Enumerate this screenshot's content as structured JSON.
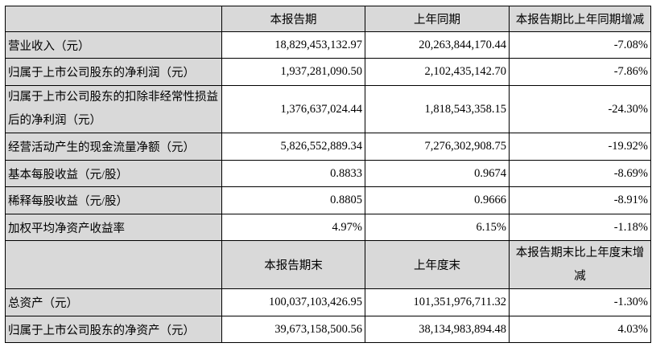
{
  "header1": [
    "",
    "本报告期",
    "上年同期",
    "本报告期比上年同期增减"
  ],
  "rows1": [
    {
      "label": "营业收入（元）",
      "current": "18,829,453,132.97",
      "prior": "20,263,844,170.44",
      "change": "-7.08%"
    },
    {
      "label": "归属于上市公司股东的净利润（元）",
      "current": "1,937,281,090.50",
      "prior": "2,102,435,142.70",
      "change": "-7.86%"
    },
    {
      "label": "归属于上市公司股东的扣除非经常性损益后的净利润（元）",
      "current": "1,376,637,024.44",
      "prior": "1,818,543,358.15",
      "change": "-24.30%"
    },
    {
      "label": "经营活动产生的现金流量净额（元）",
      "current": "5,826,552,889.34",
      "prior": "7,276,302,908.75",
      "change": "-19.92%"
    },
    {
      "label": "基本每股收益（元/股）",
      "current": "0.8833",
      "prior": "0.9674",
      "change": "-8.69%"
    },
    {
      "label": "稀释每股收益（元/股）",
      "current": "0.8805",
      "prior": "0.9666",
      "change": "-8.91%"
    },
    {
      "label": "加权平均净资产收益率",
      "current": "4.97%",
      "prior": "6.15%",
      "change": "-1.18%"
    }
  ],
  "header2": [
    "",
    "本报告期末",
    "上年度末",
    "本报告期末比上年度末增减"
  ],
  "rows2": [
    {
      "label": "总资产（元）",
      "current": "100,037,103,426.95",
      "prior": "101,351,976,711.32",
      "change": "-1.30%"
    },
    {
      "label": "归属于上市公司股东的净资产（元）",
      "current": "39,673,158,500.56",
      "prior": "38,134,983,894.48",
      "change": "4.03%"
    }
  ]
}
